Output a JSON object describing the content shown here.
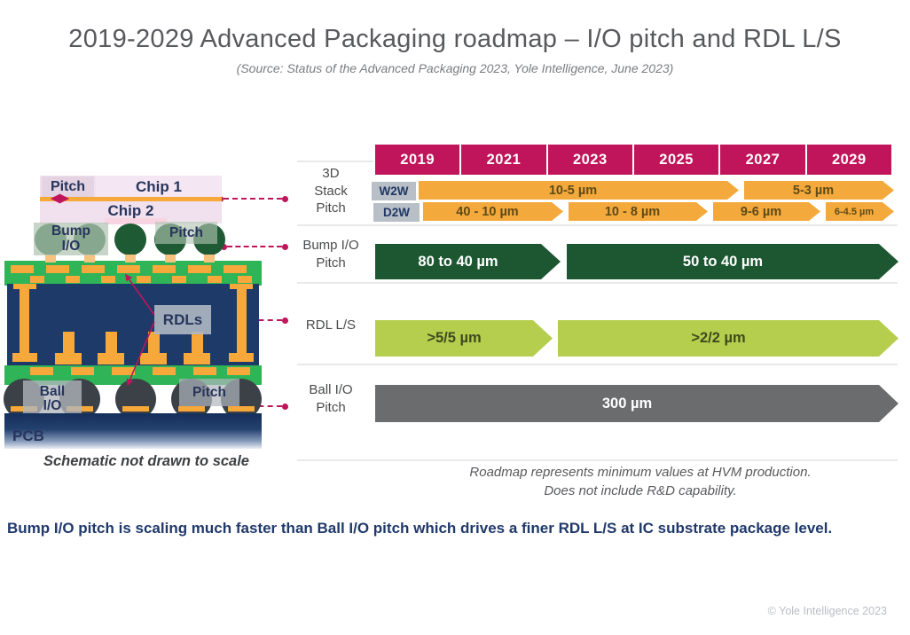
{
  "title": "2019-2029 Advanced Packaging roadmap – I/O pitch and RDL L/S",
  "subtitle": "(Source: Status of the Advanced Packaging 2023, Yole Intelligence, June 2023)",
  "colors": {
    "crimson": "#C0155A",
    "orange": "#F4A93C",
    "dark_green": "#1D5732",
    "light_green": "#B5CE4D",
    "gray": "#6A6C6E",
    "navy": "#20396B",
    "board_green": "#2FB457",
    "copper": "#F6A83B"
  },
  "years": [
    "2019",
    "2021",
    "2023",
    "2025",
    "2027",
    "2029"
  ],
  "roadmap": {
    "row_labels": [
      "3D\nStack\nPitch",
      "Bump I/O\nPitch",
      "RDL L/S",
      "Ball I/O\nPitch"
    ],
    "lanes": [
      {
        "name": "3d-stack-w2w",
        "tag": "W2W",
        "color": "orange",
        "segments": [
          "10-5 µm",
          "5-3 µm"
        ]
      },
      {
        "name": "3d-stack-d2w",
        "tag": "D2W",
        "color": "orange",
        "segments": [
          "40 - 10 µm",
          "10 - 8 µm",
          "9-6 µm",
          "6-4.5 µm"
        ]
      },
      {
        "name": "bump-io-pitch",
        "color": "dark_green",
        "segments": [
          "80 to 40 µm",
          "50 to 40 µm"
        ]
      },
      {
        "name": "rdl-ls",
        "color": "light_green",
        "segments": [
          ">5/5 µm",
          ">2/2 µm"
        ]
      },
      {
        "name": "ball-io-pitch",
        "color": "gray",
        "segments": [
          "300 µm"
        ]
      }
    ],
    "footnote": [
      "Roadmap represents minimum values at HVM production.",
      "Does not include R&D capability."
    ]
  },
  "schematic": {
    "pitch_top": "Pitch",
    "chip1": "Chip 1",
    "chip2": "Chip 2",
    "bump_io": "Bump\nI/O",
    "pitch_mid": "Pitch",
    "rdls": "RDLs",
    "ball_io": "Ball\nI/O",
    "pitch_bottom": "Pitch",
    "pcb": "PCB",
    "caption": "Schematic not drawn to scale"
  },
  "bottom_note": "Bump I/O pitch is scaling much faster than Ball I/O pitch which drives a finer RDL L/S at IC substrate package level.",
  "copyright": "© Yole Intelligence 2023"
}
